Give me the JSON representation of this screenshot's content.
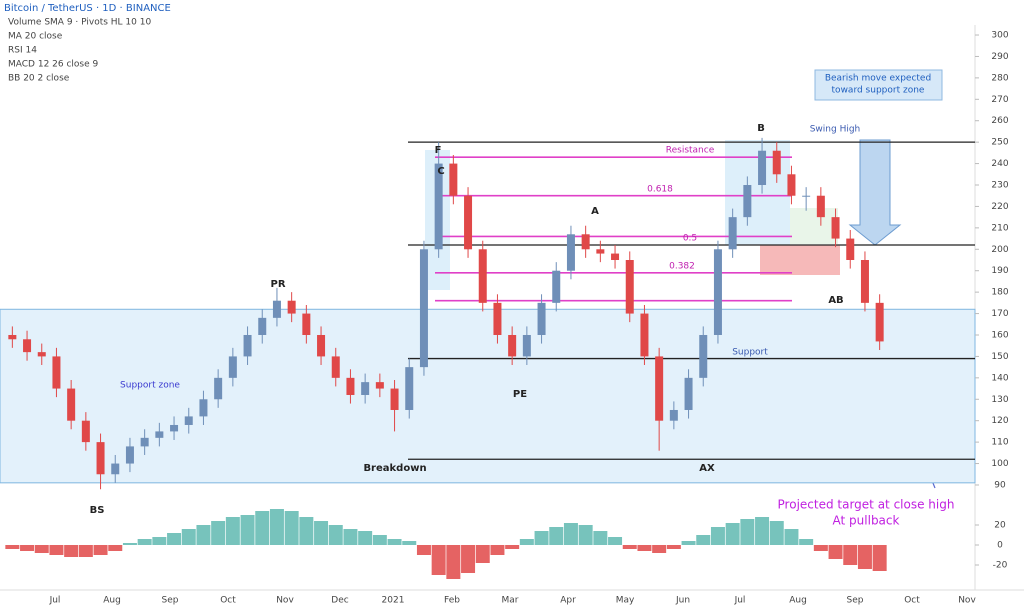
{
  "chart_data": {
    "type": "candlestick",
    "title": "Bitcoin / TetherUS · 1D · BINANCE",
    "legend_lines": [
      "Volume SMA 9 · Pivots HL 10 10",
      "MA 20 close",
      "RSI 14",
      "MACD 12 26 close 9",
      "BB 20 2 close"
    ],
    "up_color": "#6f8fb8",
    "down_color": "#e04848",
    "ylim": [
      80,
      310
    ],
    "yticks": [
      90,
      100,
      110,
      120,
      130,
      140,
      150,
      160,
      170,
      180,
      190,
      200,
      210,
      220,
      230,
      240,
      250,
      260,
      270,
      280,
      290,
      300
    ],
    "ohlc": [
      [
        160,
        164,
        154,
        158
      ],
      [
        158,
        162,
        148,
        152
      ],
      [
        152,
        156,
        146,
        150
      ],
      [
        150,
        154,
        131,
        135
      ],
      [
        135,
        139,
        116,
        120
      ],
      [
        120,
        124,
        106,
        110
      ],
      [
        110,
        114,
        88,
        95
      ],
      [
        95,
        104,
        91,
        100
      ],
      [
        100,
        112,
        96,
        108
      ],
      [
        108,
        116,
        104,
        112
      ],
      [
        112,
        119,
        108,
        115
      ],
      [
        115,
        122,
        111,
        118
      ],
      [
        118,
        126,
        114,
        122
      ],
      [
        122,
        134,
        118,
        130
      ],
      [
        130,
        144,
        126,
        140
      ],
      [
        140,
        154,
        136,
        150
      ],
      [
        150,
        164,
        146,
        160
      ],
      [
        160,
        172,
        156,
        168
      ],
      [
        168,
        182,
        164,
        176
      ],
      [
        176,
        180,
        166,
        170
      ],
      [
        170,
        174,
        156,
        160
      ],
      [
        160,
        164,
        146,
        150
      ],
      [
        150,
        154,
        136,
        140
      ],
      [
        140,
        144,
        128,
        132
      ],
      [
        132,
        142,
        128,
        138
      ],
      [
        138,
        142,
        131,
        135
      ],
      [
        135,
        139,
        115,
        125
      ],
      [
        125,
        149,
        121,
        145
      ],
      [
        145,
        204,
        141,
        200
      ],
      [
        200,
        250,
        196,
        240
      ],
      [
        240,
        244,
        221,
        225
      ],
      [
        225,
        229,
        196,
        200
      ],
      [
        200,
        204,
        171,
        175
      ],
      [
        175,
        179,
        156,
        160
      ],
      [
        160,
        164,
        146,
        150
      ],
      [
        150,
        164,
        146,
        160
      ],
      [
        160,
        179,
        156,
        175
      ],
      [
        175,
        194,
        171,
        190
      ],
      [
        190,
        211,
        186,
        207
      ],
      [
        207,
        211,
        196,
        200
      ],
      [
        200,
        204,
        194,
        198
      ],
      [
        198,
        202,
        191,
        195
      ],
      [
        195,
        199,
        166,
        170
      ],
      [
        170,
        174,
        146,
        150
      ],
      [
        150,
        154,
        106,
        120
      ],
      [
        120,
        129,
        116,
        125
      ],
      [
        125,
        144,
        121,
        140
      ],
      [
        140,
        164,
        136,
        160
      ],
      [
        160,
        204,
        156,
        200
      ],
      [
        200,
        219,
        196,
        215
      ],
      [
        215,
        234,
        211,
        230
      ],
      [
        230,
        252,
        226,
        246
      ],
      [
        246,
        250,
        231,
        235
      ],
      [
        235,
        239,
        221,
        225
      ],
      [
        225,
        229,
        218,
        225
      ],
      [
        225,
        229,
        211,
        215
      ],
      [
        215,
        219,
        201,
        205
      ],
      [
        205,
        209,
        191,
        195
      ],
      [
        195,
        199,
        171,
        175
      ],
      [
        175,
        179,
        153,
        157
      ]
    ],
    "zone": [
      91,
      172
    ],
    "levels": [
      {
        "value": 250,
        "color": "#222222"
      },
      {
        "value": 243,
        "color": "#e040c8"
      },
      {
        "value": 225,
        "color": "#e040c8"
      },
      {
        "value": 206,
        "color": "#e040c8"
      },
      {
        "value": 202,
        "color": "#222222"
      },
      {
        "value": 189,
        "color": "#e040c8"
      },
      {
        "value": 176,
        "color": "#e040c8"
      },
      {
        "value": 149,
        "color": "#222222"
      },
      {
        "value": 102,
        "color": "#222222"
      }
    ],
    "annotations": [
      "PR",
      "PE",
      "C",
      "A",
      "B",
      "AB",
      "BS",
      "AX",
      "F",
      "Swing High",
      "Support zone",
      "Resistance",
      "0.618",
      "0.5",
      "0.382",
      "Support",
      "Breakdown",
      "Projected target at close high",
      "At pullback",
      "Bearish move expected",
      "toward support zone"
    ],
    "osc_values": [
      -4,
      -6,
      -8,
      -10,
      -12,
      -12,
      -10,
      -6,
      2,
      6,
      8,
      12,
      16,
      20,
      24,
      28,
      30,
      34,
      36,
      34,
      28,
      24,
      20,
      16,
      14,
      10,
      6,
      4,
      -10,
      -30,
      -34,
      -28,
      -18,
      -10,
      -4,
      6,
      14,
      18,
      22,
      20,
      14,
      8,
      -4,
      -6,
      -8,
      -4,
      4,
      10,
      18,
      22,
      26,
      28,
      24,
      16,
      6,
      -6,
      -14,
      -20,
      -24,
      -26
    ],
    "osc_pos_color": "#5fb8b0",
    "osc_neg_color": "#e04848",
    "osc_ylim": [
      -40,
      40
    ],
    "osc_yticks": [
      -20,
      0,
      20
    ],
    "x_labels": [
      "Jul",
      "Aug",
      "Sep",
      "Oct",
      "Nov",
      "Dec",
      "2021",
      "Feb",
      "Mar",
      "Apr",
      "May",
      "Jun",
      "Jul",
      "Aug",
      "Sep",
      "Oct",
      "Nov"
    ]
  }
}
